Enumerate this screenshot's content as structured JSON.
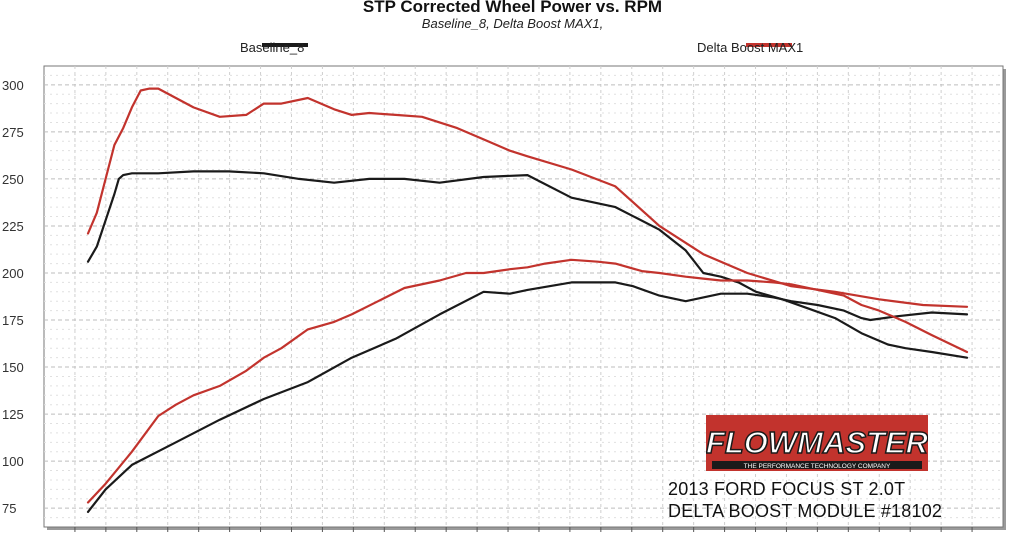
{
  "chart_data": {
    "type": "line",
    "title": "STP Corrected Wheel Power vs. RPM",
    "subtitle": "Baseline_8, Delta Boost MAX1,",
    "xlabel": "",
    "ylabel": "",
    "ylim": [
      65,
      310
    ],
    "xlim": [
      0,
      100
    ],
    "yticks": [
      75,
      100,
      125,
      150,
      175,
      200,
      225,
      250,
      275,
      300
    ],
    "grid": true,
    "legend": [
      "Baseline_8",
      "Delta Boost MAX1"
    ],
    "legend_position": "top",
    "series": [
      {
        "name": "Baseline_8",
        "color": "#1a1a1a",
        "role": "power",
        "x": [
          0,
          1,
          2,
          3,
          3.5,
          4,
          5,
          8,
          12,
          16,
          20,
          24,
          28,
          32,
          36,
          40,
          45,
          50,
          55,
          60,
          65,
          68,
          70,
          72,
          74,
          76,
          79,
          82,
          85,
          88,
          91,
          93,
          96,
          100
        ],
        "y": [
          206,
          214,
          228,
          242,
          250,
          252,
          253,
          253,
          254,
          254,
          253,
          250,
          248,
          250,
          250,
          248,
          251,
          252,
          240,
          235,
          223,
          212,
          200,
          198,
          195,
          190,
          186,
          181,
          176,
          168,
          162,
          160,
          158,
          155
        ]
      },
      {
        "name": "Baseline_8",
        "color": "#1a1a1a",
        "role": "torque",
        "x": [
          0,
          2,
          5,
          10,
          15,
          20,
          25,
          30,
          35,
          40,
          45,
          48,
          50,
          55,
          60,
          62,
          65,
          68,
          70,
          72,
          75,
          78,
          80,
          83,
          86,
          88,
          89,
          92,
          96,
          100
        ],
        "y": [
          73,
          85,
          98,
          110,
          122,
          133,
          142,
          155,
          165,
          178,
          190,
          189,
          191,
          195,
          195,
          193,
          188,
          185,
          187,
          189,
          189,
          187,
          185,
          183,
          180,
          176,
          175,
          177,
          179,
          178
        ]
      },
      {
        "name": "Delta Boost MAX1",
        "color": "#c2332d",
        "role": "power",
        "x": [
          0,
          1,
          2,
          3,
          4,
          5,
          6,
          7,
          8,
          10,
          12,
          15,
          18,
          20,
          22,
          25,
          28,
          30,
          32,
          35,
          38,
          40,
          42,
          45,
          48,
          50,
          55,
          60,
          65,
          70,
          75,
          80,
          85,
          90,
          95,
          100
        ],
        "y": [
          221,
          232,
          250,
          268,
          277,
          288,
          297,
          298,
          298,
          293,
          288,
          283,
          284,
          290,
          290,
          293,
          287,
          284,
          285,
          284,
          283,
          280,
          277,
          271,
          265,
          262,
          255,
          246,
          225,
          210,
          200,
          193,
          190,
          186,
          183,
          182
        ]
      },
      {
        "name": "Delta Boost MAX1",
        "color": "#c2332d",
        "role": "torque",
        "x": [
          0,
          2,
          5,
          8,
          10,
          12,
          15,
          18,
          20,
          22,
          25,
          28,
          30,
          33,
          36,
          40,
          43,
          45,
          48,
          50,
          52,
          55,
          58,
          60,
          63,
          65,
          68,
          70,
          72,
          75,
          78,
          80,
          83,
          86,
          88,
          90,
          93,
          96,
          100
        ],
        "y": [
          78,
          88,
          105,
          124,
          130,
          135,
          140,
          148,
          155,
          160,
          170,
          174,
          178,
          185,
          192,
          196,
          200,
          200,
          202,
          203,
          205,
          207,
          206,
          205,
          201,
          200,
          198,
          197,
          196,
          196,
          195,
          194,
          191,
          188,
          183,
          180,
          174,
          167,
          158
        ]
      }
    ]
  },
  "legend": {
    "a": "Baseline_8",
    "b": "Delta Boost MAX1",
    "a_color": "#1a1a1a",
    "b_color": "#c2332d"
  },
  "logo": {
    "brand": "FLOWMASTER",
    "tagline": "THE PERFORMANCE TECHNOLOGY COMPANY",
    "color": "#c2332d"
  },
  "caption": {
    "line1": "2013 FORD FOCUS ST 2.0T",
    "line2": "DELTA BOOST MODULE #18102"
  }
}
